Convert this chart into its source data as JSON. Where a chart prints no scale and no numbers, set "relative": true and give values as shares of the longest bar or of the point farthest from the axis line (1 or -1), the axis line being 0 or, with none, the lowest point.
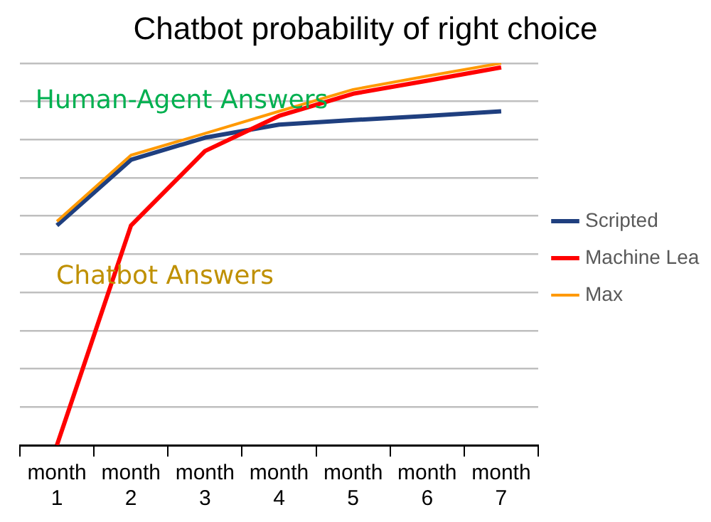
{
  "chart_data": {
    "type": "line",
    "title": "Chatbot probability of right choice",
    "categories": [
      "month 1",
      "month 2",
      "month 3",
      "month 4",
      "month 5",
      "month 6",
      "month 7"
    ],
    "relative": true,
    "grid": "y",
    "legend": "right",
    "marker": "none",
    "series": [
      {
        "name": "Scripted",
        "color": "#1f3f7f",
        "values": [
          0.575,
          0.747,
          0.805,
          0.839,
          0.851,
          0.862,
          0.874
        ]
      },
      {
        "name": "Machine Lea",
        "color": "#ff0000",
        "values": [
          0,
          0.575,
          0.77,
          0.862,
          0.92,
          0.954,
          0.989
        ]
      },
      {
        "name": "Max",
        "color": "#ff9900",
        "values": [
          0.586,
          0.759,
          0.816,
          0.874,
          0.931,
          0.966,
          1
        ]
      }
    ],
    "annotations": [
      "Human-Agent Answers",
      "Chatbot Answers"
    ]
  }
}
